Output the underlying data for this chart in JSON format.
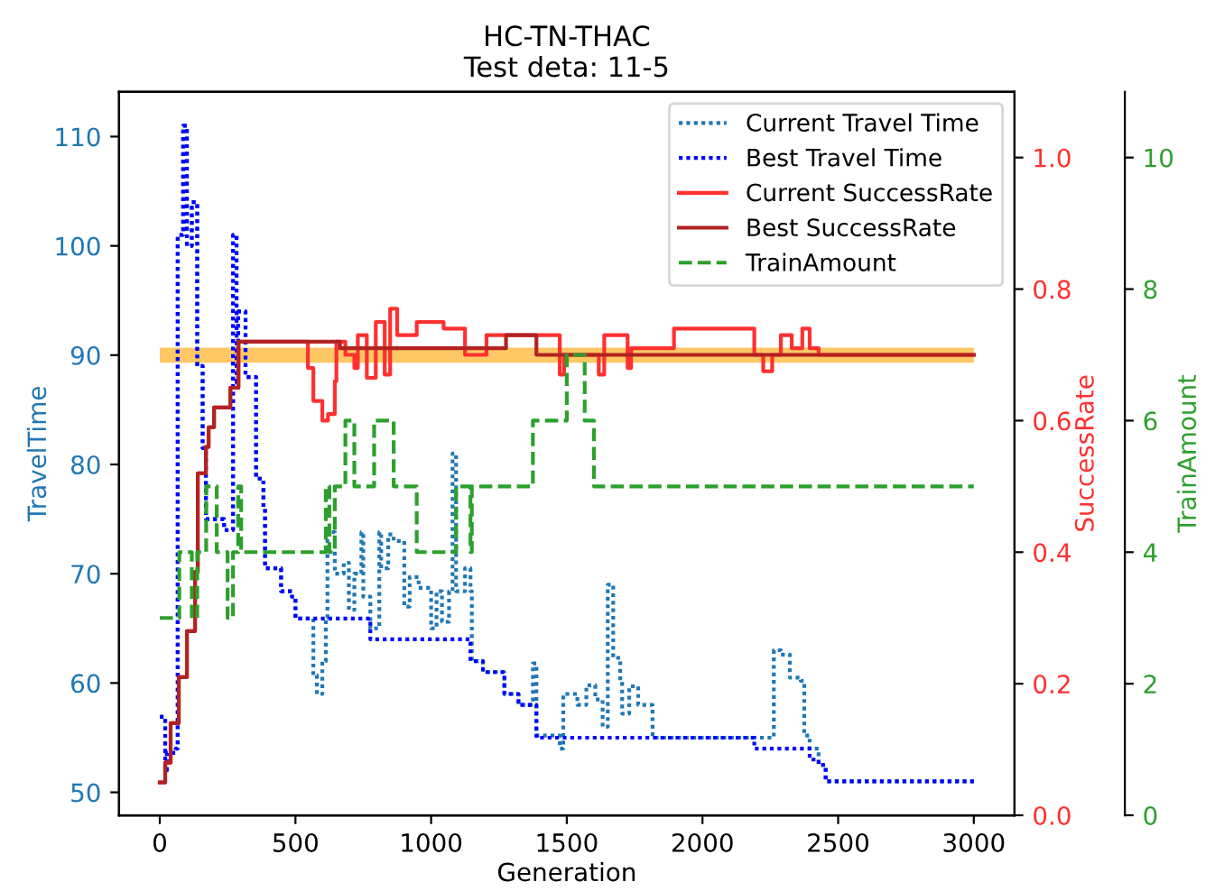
{
  "chart_data": {
    "type": "step",
    "title": "HC-TN-THAC",
    "subtitle": "Test deta: 11-5",
    "xlabel": "Generation",
    "ylabel": "TravelTime",
    "y2label": "SuccessRate",
    "y3label": "TrainAmount",
    "xlim": [
      -150,
      3150
    ],
    "xticks": [
      0,
      500,
      1000,
      1500,
      2000,
      2500,
      3000
    ],
    "ylim": [
      47.9,
      114.1
    ],
    "yticks": [
      50,
      60,
      70,
      80,
      90,
      100,
      110
    ],
    "y2lim": [
      0,
      1.1
    ],
    "y2ticks": [
      {
        "value": 0,
        "label": "0.0"
      },
      {
        "value": 0.2,
        "label": "0.2"
      },
      {
        "value": 0.4,
        "label": "0.4"
      },
      {
        "value": 0.6,
        "label": "0.6"
      },
      {
        "value": 0.8,
        "label": "0.8"
      },
      {
        "value": 1,
        "label": "1.0"
      }
    ],
    "y3lim": [
      0,
      11
    ],
    "y3ticks": [
      0,
      2,
      4,
      6,
      8,
      10
    ],
    "grid": false,
    "legend": "top right",
    "ref_lines": [
      {
        "axis": "y",
        "value": 90,
        "color": "#ffc864"
      }
    ],
    "series": [
      {
        "name": "Current Travel Time",
        "color": "#1f77b4",
        "line_style": "dotted",
        "axis": "y",
        "x": [
          0,
          20,
          26,
          59,
          66,
          86,
          100,
          118,
          138,
          158,
          170,
          237,
          270,
          283,
          289,
          316,
          355,
          382,
          388,
          447,
          487,
          500,
          566,
          579,
          599,
          612,
          618,
          645,
          678,
          697,
          717,
          743,
          750,
          776,
          809,
          816,
          842,
          862,
          901,
          921,
          954,
          1000,
          1020,
          1040,
          1066,
          1079,
          1092,
          1125,
          1145,
          1150,
          1191,
          1270,
          1322,
          1375,
          1388,
          1474,
          1487,
          1539,
          1572,
          1605,
          1632,
          1651,
          1671,
          1697,
          1704,
          1730,
          1763,
          1816,
          2243,
          2263,
          2289,
          2322,
          2362,
          2375,
          2395,
          2428,
          2454,
          3000
        ],
        "values": [
          56.9,
          52,
          53.6,
          54,
          101,
          111,
          100,
          104,
          89,
          81.5,
          75,
          74,
          101,
          87.5,
          94,
          88,
          78.7,
          76,
          70.5,
          68.4,
          67.9,
          65.9,
          60.7,
          59,
          62,
          66,
          73.8,
          70,
          71,
          66.7,
          70,
          73.8,
          67.9,
          65,
          73.8,
          70.5,
          73.6,
          73,
          67,
          69.7,
          68.7,
          65,
          68.4,
          65.6,
          68.4,
          81,
          68.4,
          70.5,
          68.4,
          62,
          61,
          59,
          58,
          61.8,
          55.2,
          54,
          59,
          58,
          59.8,
          58.5,
          56,
          69,
          62.3,
          60.2,
          57.2,
          59.7,
          58,
          55,
          55,
          63,
          62.6,
          60.5,
          60.2,
          55.2,
          54,
          52.5,
          51,
          51
        ]
      },
      {
        "name": "Best Travel Time",
        "color": "#0000ff",
        "line_style": "dotted",
        "axis": "y",
        "x": [
          0,
          20,
          26,
          59,
          66,
          86,
          100,
          118,
          138,
          158,
          170,
          237,
          270,
          283,
          289,
          316,
          355,
          382,
          388,
          447,
          487,
          500,
          776,
          1145,
          1191,
          1270,
          1322,
          1388,
          2191,
          2395,
          2428,
          2454,
          3000
        ],
        "values": [
          56.9,
          52,
          53.6,
          54,
          101,
          111,
          100,
          104,
          89,
          81.5,
          75,
          74,
          101,
          87.5,
          94,
          88,
          78.7,
          76,
          70.5,
          68.4,
          67.9,
          65.9,
          64,
          62,
          61,
          59,
          58,
          55,
          54,
          53,
          52.5,
          51,
          51
        ]
      },
      {
        "name": "Current SuccessRate",
        "color": "#ff3030",
        "line_style": "solid",
        "axis": "y2",
        "x": [
          0,
          20,
          40,
          70,
          100,
          130,
          140,
          170,
          180,
          200,
          260,
          290,
          546,
          566,
          599,
          620,
          645,
          651,
          684,
          717,
          730,
          763,
          796,
          829,
          849,
          875,
          947,
          1046,
          1125,
          1204,
          1474,
          1490,
          1618,
          1638,
          1724,
          1737,
          1895,
          2191,
          2224,
          2257,
          2289,
          2329,
          2368,
          2395,
          2428,
          3000
        ],
        "values": [
          0.05,
          0.08,
          0.14,
          0.21,
          0.28,
          0.37,
          0.52,
          0.56,
          0.59,
          0.62,
          0.65,
          0.72,
          0.68,
          0.63,
          0.6,
          0.61,
          0.66,
          0.72,
          0.7,
          0.68,
          0.73,
          0.665,
          0.75,
          0.67,
          0.77,
          0.73,
          0.75,
          0.74,
          0.7,
          0.73,
          0.67,
          0.7,
          0.67,
          0.73,
          0.68,
          0.71,
          0.74,
          0.7,
          0.675,
          0.7,
          0.73,
          0.71,
          0.74,
          0.71,
          0.7,
          0.7
        ]
      },
      {
        "name": "Best SuccessRate",
        "color": "#b22222",
        "line_style": "solid",
        "axis": "y2",
        "x": [
          0,
          20,
          40,
          70,
          100,
          130,
          140,
          170,
          180,
          200,
          260,
          290,
          664,
          1276,
          1388,
          3000
        ],
        "values": [
          0.05,
          0.08,
          0.14,
          0.21,
          0.28,
          0.37,
          0.52,
          0.56,
          0.59,
          0.62,
          0.65,
          0.72,
          0.71,
          0.73,
          0.7,
          0.7
        ]
      },
      {
        "name": "TrainAmount",
        "color": "#2ca02c",
        "line_style": "dashed",
        "axis": "y3",
        "x": [
          0,
          72,
          118,
          138,
          171,
          210,
          250,
          270,
          289,
          300,
          612,
          625,
          645,
          684,
          717,
          790,
          862,
          947,
          1092,
          1145,
          1150,
          1375,
          1500,
          1566,
          1600,
          3000
        ],
        "values": [
          3,
          4,
          3,
          4,
          5,
          4,
          3,
          4,
          5,
          4,
          5,
          4,
          5,
          6,
          5,
          6,
          5,
          4,
          5,
          4,
          5,
          6,
          7,
          6,
          5,
          5
        ]
      }
    ]
  }
}
